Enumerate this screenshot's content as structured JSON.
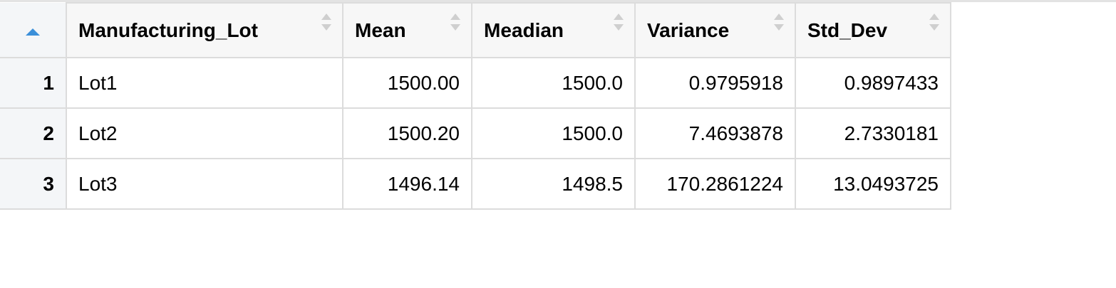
{
  "table": {
    "columns": [
      {
        "key": "Manufacturing_Lot",
        "label": "Manufacturing_Lot",
        "align": "left"
      },
      {
        "key": "Mean",
        "label": "Mean",
        "align": "right"
      },
      {
        "key": "Meadian",
        "label": "Meadian",
        "align": "right"
      },
      {
        "key": "Variance",
        "label": "Variance",
        "align": "right"
      },
      {
        "key": "Std_Dev",
        "label": "Std_Dev",
        "align": "right"
      }
    ],
    "rows": [
      {
        "index": "1",
        "cells": [
          "Lot1",
          "1500.00",
          "1500.0",
          "0.9795918",
          "0.9897433"
        ]
      },
      {
        "index": "2",
        "cells": [
          "Lot2",
          "1500.20",
          "1500.0",
          "7.4693878",
          "2.7330181"
        ]
      },
      {
        "index": "3",
        "cells": [
          "Lot3",
          "1496.14",
          "1498.5",
          "170.2861224",
          "13.0493725"
        ]
      }
    ],
    "index_sort": "ascending",
    "colors": {
      "sort_active": "#3b8fd9",
      "sort_inactive": "#cfcfcf",
      "border": "#dcdcdc",
      "index_bg": "#f4f6f8"
    }
  }
}
